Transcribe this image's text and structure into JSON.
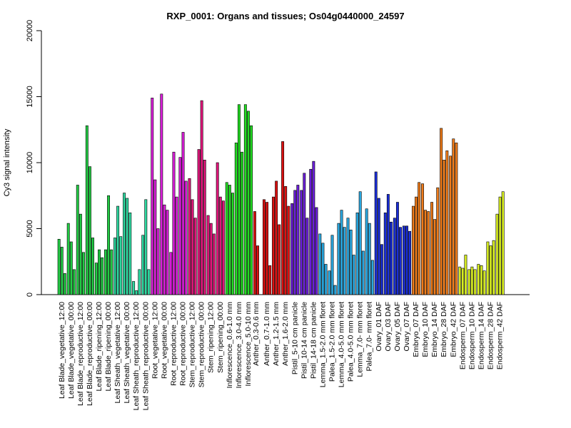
{
  "chart_data": {
    "type": "bar",
    "title": "RXP_0001: Organs and tissues; Os04g0440000_24597",
    "xlabel": "",
    "ylabel": "Cy3 signal intensity",
    "ylim": [
      0,
      20000
    ],
    "yticks": [
      0,
      5000,
      10000,
      15000,
      20000
    ],
    "grid": false,
    "legend": "none",
    "categories": [
      "Leaf Blade_vegetative_12:00",
      "Leaf Blade_vegetative_00:00",
      "Leaf Blade_reproductive_12:00",
      "Leaf Blade_reproductive_00:00",
      "Leaf Blade_ripening_12:00",
      "Leaf Blade_ripening_00:00",
      "Leaf Sheath_vegetative_12:00",
      "Leaf Sheath_vegetative_00:00",
      "Leaf Sheath_reproductive_12:00",
      "Leaf Sheath_reproductive_00:00",
      "Root_vegetative_12:00",
      "Root_vegetative_00:00",
      "Root_reproductive_12:00",
      "Root_reproductive_00:00",
      "Stem_reproductive_12:00",
      "Stem_reproductive_00:00",
      "Stem_ripening_12:00",
      "Stem_ripening_00:00",
      "Inflorescence_0.6-1.0 mm",
      "Inflorescence_3.0-4.0 mm",
      "Inflorescence_5.0-10 mm",
      "Anther_0.3-0.6 mm",
      "Anther_0.7-1.0 mm",
      "Anther_1.2-1.5 mm",
      "Anther_1.6-2.0 mm",
      "Pistil_5-10 cm panicle",
      "Pistil_10-14 cm panicle",
      "Pistil_14-18 cm panicle",
      "Lemma_1.5-2.0 mm floret",
      "Palea_1.5-2.0 mm floret",
      "Lemma_4.0-5.0 mm floret",
      "Palea_4.0-5.0 mm floret",
      "Lemma_7.0- mm floret",
      "Palea_7.0- mm floret",
      "Ovary_01 DAF",
      "Ovary_03 DAF",
      "Ovary_05 DAF",
      "Ovary_07 DAF",
      "Embryo_07 DAF",
      "Embryo_10 DAF",
      "Embryo_14 DAF",
      "Embryo_28 DAF",
      "Embryo_42 DAF",
      "Endosperm_07 DAF",
      "Endosperm_10 DAF",
      "Endosperm_14 DAF",
      "Endosperm_28 DAF",
      "Endosperm_42 DAF"
    ],
    "groups": [
      {
        "color": "#22cc44",
        "values": [
          4200,
          3600,
          1600
        ]
      },
      {
        "color": "#22cc44",
        "values": [
          5400,
          4000,
          1900
        ]
      },
      {
        "color": "#22cc44",
        "values": [
          8300,
          6100,
          3200
        ]
      },
      {
        "color": "#22cc44",
        "values": [
          12800,
          9700,
          4300
        ]
      },
      {
        "color": "#22cc44",
        "values": [
          2400,
          3400,
          2800
        ]
      },
      {
        "color": "#22cc44",
        "values": [
          3400,
          7500,
          3400
        ]
      },
      {
        "color": "#2ed8a0",
        "values": [
          4300,
          6700,
          4400
        ]
      },
      {
        "color": "#2ed8a0",
        "values": [
          7700,
          7300,
          6200
        ]
      },
      {
        "color": "#2ed8a0",
        "values": [
          1000,
          300,
          1900
        ]
      },
      {
        "color": "#2ed8a0",
        "values": [
          4500,
          7200,
          1900
        ]
      },
      {
        "color": "#d81ed8",
        "values": [
          14900,
          8700,
          5000
        ]
      },
      {
        "color": "#d81ed8",
        "values": [
          15200,
          6800,
          6400
        ]
      },
      {
        "color": "#d81ed8",
        "values": [
          3200,
          10800,
          7400
        ]
      },
      {
        "color": "#d81ed8",
        "values": [
          10400,
          12300,
          8600
        ]
      },
      {
        "color": "#e0157a",
        "values": [
          8800,
          7200,
          5800
        ]
      },
      {
        "color": "#e0157a",
        "values": [
          11000,
          14700,
          10200
        ]
      },
      {
        "color": "#e0157a",
        "values": [
          6000,
          5400,
          4600
        ]
      },
      {
        "color": "#e0157a",
        "values": [
          10000,
          7400,
          7100
        ]
      },
      {
        "color": "#22dd22",
        "values": [
          8500,
          8300,
          7700
        ]
      },
      {
        "color": "#22dd22",
        "values": [
          11500,
          14400,
          10800
        ]
      },
      {
        "color": "#22dd22",
        "values": [
          14400,
          13900,
          12800
        ]
      },
      {
        "color": "#dd1111",
        "values": [
          6300,
          3700
        ]
      },
      {
        "color": "#dd1111",
        "values": [
          7200,
          7000,
          2200
        ]
      },
      {
        "color": "#dd1111",
        "values": [
          7400,
          8600,
          5300
        ]
      },
      {
        "color": "#dd1111",
        "values": [
          11600,
          8200,
          6700
        ]
      },
      {
        "color": "#6a1ed8",
        "values": [
          6900,
          7900,
          8300
        ]
      },
      {
        "color": "#6a1ed8",
        "values": [
          7900,
          9200,
          5800
        ]
      },
      {
        "color": "#6a1ed8",
        "values": [
          9500,
          10100,
          6600
        ]
      },
      {
        "color": "#2aa8e0",
        "values": [
          4600,
          3900,
          2300
        ]
      },
      {
        "color": "#2aa8e0",
        "values": [
          1800,
          4500,
          700
        ]
      },
      {
        "color": "#2aa8e0",
        "values": [
          5400,
          6400,
          5100
        ]
      },
      {
        "color": "#2aa8e0",
        "values": [
          5800,
          4900,
          3000
        ]
      },
      {
        "color": "#2aa8e0",
        "values": [
          6200,
          7800,
          3300
        ]
      },
      {
        "color": "#2aa8e0",
        "values": [
          6500,
          5400,
          2600
        ]
      },
      {
        "color": "#1a2ed8",
        "values": [
          9300,
          7300,
          3800
        ]
      },
      {
        "color": "#1a2ed8",
        "values": [
          6200,
          7600,
          5500
        ]
      },
      {
        "color": "#1a2ed8",
        "values": [
          5800,
          7000,
          5100
        ]
      },
      {
        "color": "#1a2ed8",
        "values": [
          5200,
          5200,
          4800
        ]
      },
      {
        "color": "#f07c1a",
        "values": [
          6700,
          7400,
          8500
        ]
      },
      {
        "color": "#f07c1a",
        "values": [
          8400,
          6400,
          6300
        ]
      },
      {
        "color": "#f07c1a",
        "values": [
          7000,
          5700,
          8100
        ]
      },
      {
        "color": "#f07c1a",
        "values": [
          12600,
          10200,
          10900
        ]
      },
      {
        "color": "#f07c1a",
        "values": [
          10500,
          11800,
          11500
        ]
      },
      {
        "color": "#d8ee22",
        "values": [
          2100,
          2000,
          3000
        ]
      },
      {
        "color": "#d8ee22",
        "values": [
          1900,
          2100,
          1900
        ]
      },
      {
        "color": "#d8ee22",
        "values": [
          2300,
          2200,
          1800
        ]
      },
      {
        "color": "#d8ee22",
        "values": [
          4000,
          3700,
          4100
        ]
      },
      {
        "color": "#d8ee22",
        "values": [
          6100,
          7400,
          7800
        ]
      }
    ]
  }
}
